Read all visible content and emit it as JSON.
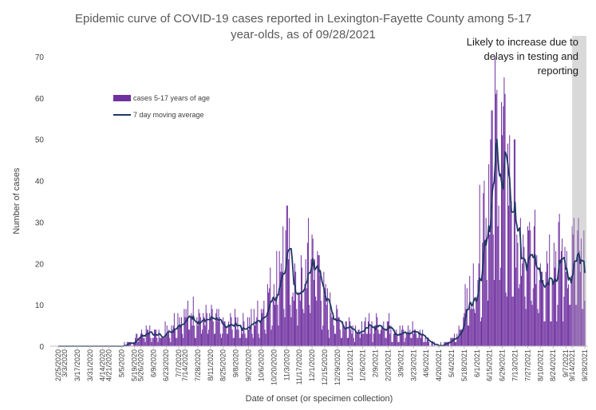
{
  "chart_data": {
    "type": "bar",
    "title_lines": [
      "Epidemic curve of COVID-19 cases reported in Lexington-Fayette County among 5-17",
      "year-olds, as of 09/28/2021"
    ],
    "xlabel": "Date of onset (or specimen collection)",
    "ylabel": "Number of cases",
    "ylim": [
      0,
      70
    ],
    "y_ticks": [
      0,
      10,
      20,
      30,
      40,
      50,
      60,
      70
    ],
    "x_start": "2/25/2020",
    "x_tick_labels": [
      "2/25/2020",
      "3/3/2020",
      "3/17/2020",
      "3/31/2020",
      "4/14/2020",
      "4/21/2020",
      "5/5/2020",
      "5/19/2020",
      "5/26/2020",
      "6/9/2020",
      "6/23/2020",
      "7/7/2020",
      "7/14/2020",
      "7/28/2020",
      "8/11/2020",
      "8/25/2020",
      "9/8/2020",
      "9/22/2020",
      "10/6/2020",
      "10/20/2020",
      "11/3/2020",
      "11/17/2020",
      "12/1/2020",
      "12/15/2020",
      "12/29/2020",
      "1/12/2021",
      "1/26/2021",
      "2/9/2021",
      "2/23/2021",
      "3/9/2021",
      "3/23/2021",
      "4/6/2021",
      "4/20/2021",
      "5/4/2021",
      "5/18/2021",
      "6/1/2021",
      "6/15/2021",
      "6/29/2021",
      "7/13/2021",
      "7/27/2021",
      "8/10/2021",
      "8/24/2021",
      "9/7/2021",
      "9/14/2021",
      "9/28/2021"
    ],
    "series": [
      {
        "name": "cases 5-17 years of age",
        "kind": "bar",
        "color": "#7030a0"
      },
      {
        "name": "7 day moving average",
        "kind": "line",
        "color": "#1f3864"
      }
    ],
    "weekly_average_anchors": [
      0,
      0,
      0.1,
      0.2,
      0.1,
      0.2,
      0.3,
      0.2,
      0.1,
      0.2,
      0.3,
      0.8,
      1.5,
      3,
      3.5,
      3,
      2.5,
      4,
      5,
      6.5,
      6.5,
      7.5,
      7.5,
      6.5,
      6,
      5.5,
      4.5,
      5,
      5.5,
      5,
      5,
      6,
      8,
      11,
      14,
      20,
      22,
      15,
      13,
      17,
      22,
      19,
      10,
      8,
      6,
      5,
      5,
      4,
      4,
      5,
      5,
      6,
      5,
      4,
      3,
      3,
      4,
      3,
      2,
      0.5,
      0.3,
      0.5,
      1.5,
      3,
      9,
      12,
      18,
      30,
      40,
      46,
      41,
      36,
      31,
      20
    ],
    "recent_period_shaded": true,
    "annotation": [
      "Likely to increase due to",
      "delays in testing and",
      "reporting"
    ],
    "legend_position": "upper-left",
    "grid": false
  }
}
